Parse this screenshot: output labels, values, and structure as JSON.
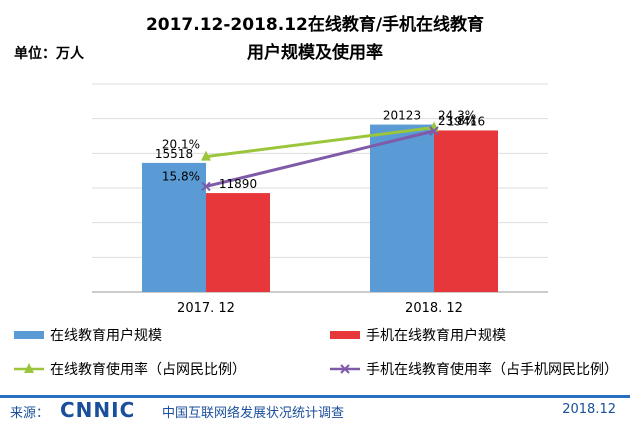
{
  "chart_data": {
    "type": "bar",
    "title_line1": "2017.12-2018.12在线教育/手机在线教育",
    "title_line2": "用户规模及使用率",
    "unit": "单位：万人",
    "categories": [
      "2017. 12",
      "2018. 12"
    ],
    "series": [
      {
        "name": "在线教育用户规模",
        "kind": "bar",
        "color": "#5b9bd5",
        "values": [
          15518,
          20123
        ]
      },
      {
        "name": "手机在线教育用户规模",
        "kind": "bar",
        "color": "#e8373a",
        "values": [
          11890,
          19416
        ]
      },
      {
        "name": "在线教育使用率（占网民比例）",
        "kind": "line",
        "color": "#9bc63b",
        "values": [
          20.1,
          24.3
        ],
        "labels": [
          "20.1%",
          "24.3%"
        ]
      },
      {
        "name": "手机在线教育使用率（占手机网民比例）",
        "kind": "line",
        "color": "#7e5aa8",
        "values": [
          15.8,
          23.8
        ],
        "labels": [
          "15.8%",
          "23.8%"
        ]
      }
    ],
    "ylim": [
      0,
      25000
    ],
    "grid": true,
    "legend": "bottom"
  },
  "footer": {
    "source_label": "来源：",
    "logo": "CNNIC",
    "org": "中国互联网络发展状况统计调查",
    "date": "2018.12"
  }
}
